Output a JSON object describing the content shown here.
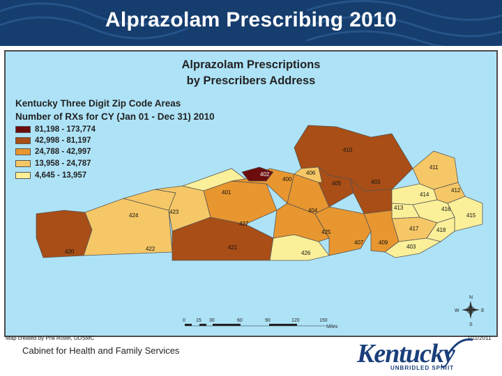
{
  "slide": {
    "title": "Alprazolam Prescribing 2010"
  },
  "map": {
    "title_line1": "Alprazolam Prescriptions",
    "title_line2": "by Prescribers Address",
    "subtitle_line1": "Kentucky Three Digit Zip Code Areas",
    "subtitle_line2": "Number of RXs for CY (Jan 01 - Dec 31) 2010",
    "legend": [
      {
        "label": "81,198 - 173,774",
        "color": "#6b0d0d"
      },
      {
        "label": "42,998 - 81,197",
        "color": "#a84e16"
      },
      {
        "label": "24,788 - 42,997",
        "color": "#e8962f"
      },
      {
        "label": "13,958 - 24,787",
        "color": "#f6c766"
      },
      {
        "label": "4,645 - 13,957",
        "color": "#fbf099"
      }
    ],
    "zip_labels": [
      "410",
      "402",
      "406",
      "400",
      "405",
      "403",
      "411",
      "412",
      "401",
      "414",
      "413",
      "416",
      "415",
      "424",
      "423",
      "404",
      "427",
      "417",
      "418",
      "425",
      "407",
      "409",
      "403",
      "421",
      "420",
      "422",
      "426"
    ],
    "scale": {
      "ticks": [
        "0",
        "15",
        "30",
        "60",
        "90",
        "120",
        "150"
      ],
      "unit": "Miles"
    },
    "compass": {
      "n": "N",
      "s": "S",
      "e": "E",
      "w": "W"
    },
    "credit": "Map created by Phil Rosel, UDSMC",
    "date": "1/11/2011"
  },
  "footer": {
    "org": "Cabinet for Health and Family Services",
    "logo_word": "Kentucky",
    "logo_tagline": "UNBRIDLED SPIRIT"
  }
}
